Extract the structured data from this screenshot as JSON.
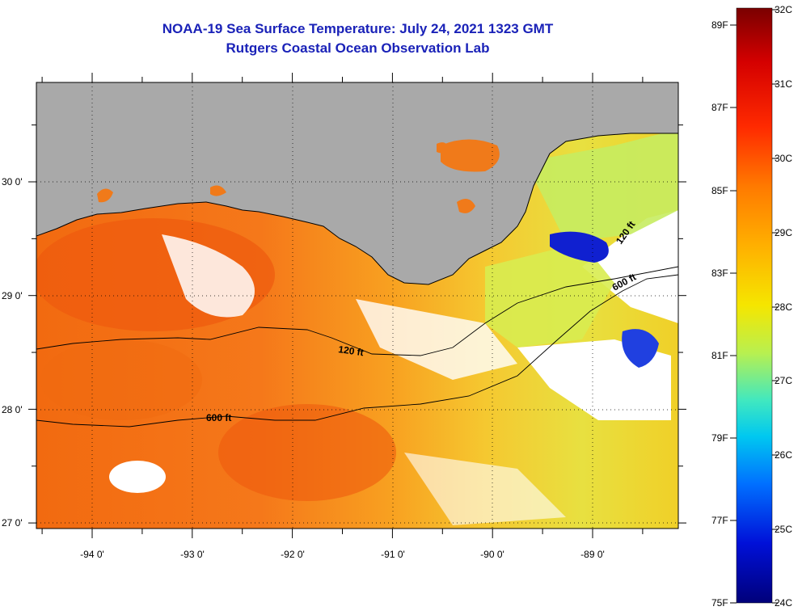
{
  "title": "NOAA-19 Sea Surface Temperature:  July 24, 2021 1323 GMT",
  "subtitle": "Rutgers Coastal Ocean Observation Lab",
  "map": {
    "lon_labels": [
      "-94 0'",
      "-93 0'",
      "-92 0'",
      "-91 0'",
      "-90 0'",
      "-89 0'"
    ],
    "lat_labels": [
      "30 0'",
      "29 0'",
      "28 0'",
      "27 0'"
    ],
    "contours": [
      {
        "label": "120 ft"
      },
      {
        "label": "600 ft"
      },
      {
        "label": "120 ft"
      },
      {
        "label": "600 ft"
      }
    ]
  },
  "colorbar": {
    "fahrenheit": [
      "89F",
      "87F",
      "85F",
      "83F",
      "81F",
      "79F",
      "77F",
      "75F"
    ],
    "celsius": [
      "32C",
      "31C",
      "30C",
      "29C",
      "28C",
      "27C",
      "26C",
      "25C",
      "24C"
    ],
    "colors": [
      "#7a0000",
      "#d40000",
      "#ff2a00",
      "#ff7a00",
      "#ffb000",
      "#f5e600",
      "#b8f050",
      "#40e8c0",
      "#00c8f0",
      "#0070ff",
      "#0010d8",
      "#00007a"
    ]
  }
}
